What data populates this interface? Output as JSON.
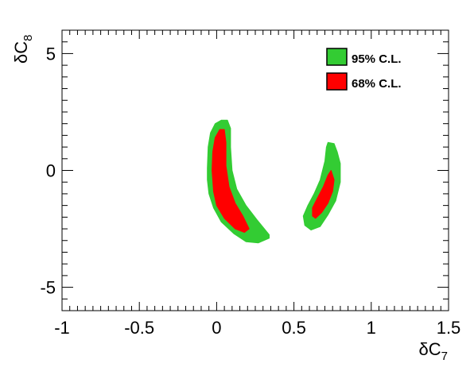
{
  "chart_data": {
    "type": "contour",
    "title": "",
    "xlabel": "δC",
    "xlabel_sub": "7",
    "ylabel": "δC",
    "ylabel_sub": "8",
    "xlim": [
      -1,
      1.5
    ],
    "ylim": [
      -6,
      6
    ],
    "x_ticks": [
      {
        "value": -1,
        "label": "-1"
      },
      {
        "value": -0.5,
        "label": "-0.5"
      },
      {
        "value": 0,
        "label": "0"
      },
      {
        "value": 0.5,
        "label": "0.5"
      },
      {
        "value": 1,
        "label": "1"
      },
      {
        "value": 1.5,
        "label": "1.5"
      }
    ],
    "y_ticks": [
      {
        "value": -5,
        "label": "-5"
      },
      {
        "value": 0,
        "label": "0"
      },
      {
        "value": 5,
        "label": "5"
      }
    ],
    "grid": false,
    "legend_placement": "top-right",
    "series": [
      {
        "name": "95% C.L.",
        "color": "#33cc33",
        "regions": [
          [
            [
              -0.06,
              0.1
            ],
            [
              -0.055,
              1.0
            ],
            [
              -0.04,
              1.6
            ],
            [
              -0.01,
              2.0
            ],
            [
              0.03,
              2.15
            ],
            [
              0.07,
              2.15
            ],
            [
              0.09,
              1.8
            ],
            [
              0.09,
              1.0
            ],
            [
              0.1,
              0.0
            ],
            [
              0.13,
              -0.8
            ],
            [
              0.19,
              -1.5
            ],
            [
              0.26,
              -2.1
            ],
            [
              0.34,
              -2.75
            ],
            [
              0.34,
              -2.9
            ],
            [
              0.27,
              -3.1
            ],
            [
              0.19,
              -3.05
            ],
            [
              0.11,
              -2.7
            ],
            [
              0.03,
              -2.2
            ],
            [
              -0.02,
              -1.6
            ],
            [
              -0.05,
              -1.0
            ],
            [
              -0.06,
              -0.4
            ]
          ],
          [
            [
              0.72,
              1.2
            ],
            [
              0.76,
              1.15
            ],
            [
              0.78,
              0.8
            ],
            [
              0.8,
              0.3
            ],
            [
              0.8,
              -0.5
            ],
            [
              0.77,
              -1.3
            ],
            [
              0.72,
              -1.9
            ],
            [
              0.67,
              -2.4
            ],
            [
              0.61,
              -2.55
            ],
            [
              0.57,
              -2.35
            ],
            [
              0.56,
              -1.95
            ],
            [
              0.59,
              -1.5
            ],
            [
              0.63,
              -1.0
            ],
            [
              0.67,
              -0.4
            ],
            [
              0.7,
              0.4
            ],
            [
              0.71,
              1.0
            ]
          ]
        ]
      },
      {
        "name": "68% C.L.",
        "color": "#ff0000",
        "regions": [
          [
            [
              -0.03,
              0.0
            ],
            [
              -0.025,
              0.8
            ],
            [
              -0.01,
              1.4
            ],
            [
              0.02,
              1.75
            ],
            [
              0.05,
              1.75
            ],
            [
              0.06,
              1.2
            ],
            [
              0.06,
              0.2
            ],
            [
              0.08,
              -0.7
            ],
            [
              0.12,
              -1.4
            ],
            [
              0.17,
              -1.95
            ],
            [
              0.21,
              -2.5
            ],
            [
              0.18,
              -2.65
            ],
            [
              0.12,
              -2.5
            ],
            [
              0.05,
              -2.05
            ],
            [
              0.0,
              -1.5
            ],
            [
              -0.02,
              -0.9
            ]
          ],
          [
            [
              0.74,
              0.0
            ],
            [
              0.76,
              -0.4
            ],
            [
              0.75,
              -0.9
            ],
            [
              0.72,
              -1.4
            ],
            [
              0.68,
              -1.8
            ],
            [
              0.64,
              -2.05
            ],
            [
              0.62,
              -1.95
            ],
            [
              0.62,
              -1.6
            ],
            [
              0.65,
              -1.2
            ],
            [
              0.69,
              -0.7
            ],
            [
              0.72,
              -0.2
            ]
          ]
        ]
      }
    ]
  }
}
